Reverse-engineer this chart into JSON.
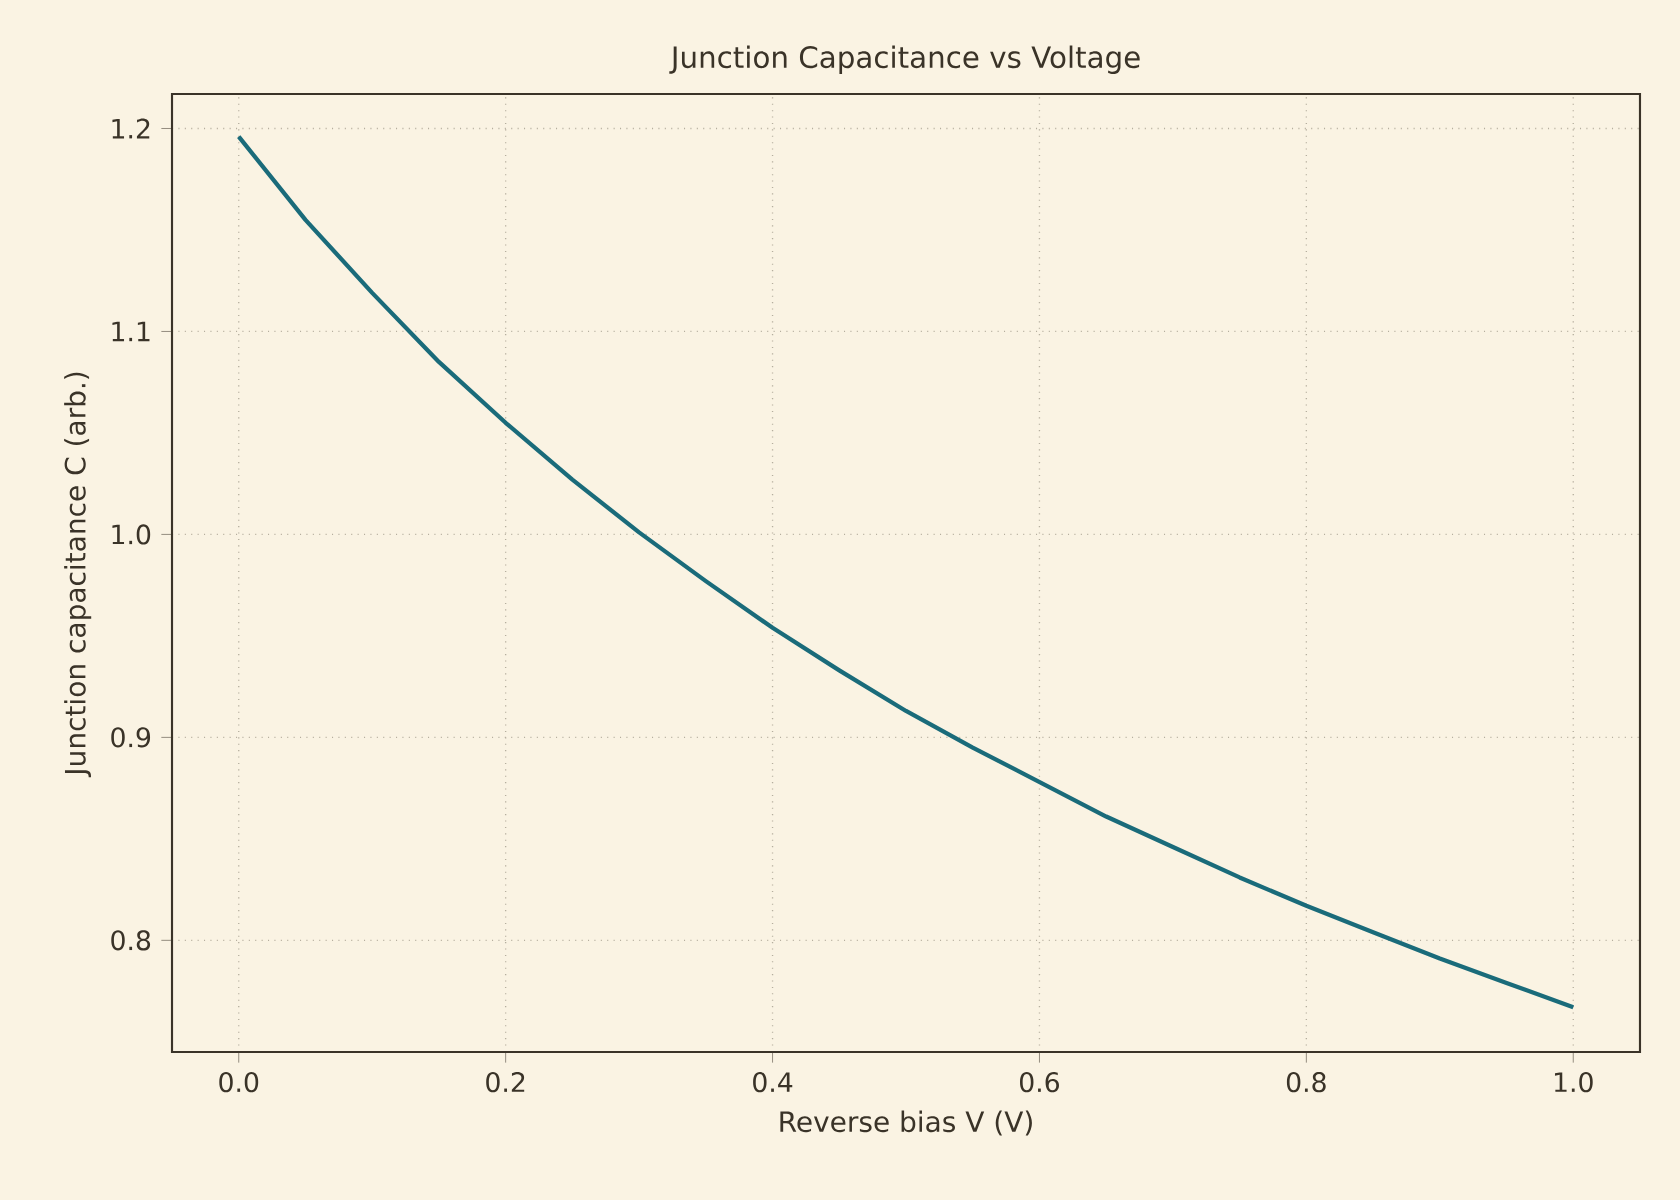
{
  "chart_data": {
    "type": "line",
    "title": "Junction Capacitance vs Voltage",
    "xlabel": "Reverse bias V (V)",
    "ylabel": "Junction capacitance C (arb.)",
    "x": [
      0,
      0.05,
      0.1,
      0.15,
      0.2,
      0.25,
      0.3,
      0.35,
      0.4,
      0.45,
      0.5,
      0.55,
      0.6,
      0.65,
      0.7,
      0.75,
      0.8,
      0.85,
      0.9,
      0.95,
      1.0
    ],
    "series": [
      {
        "color": "#1a6b7a",
        "values": [
          1.196,
          1.155,
          1.119,
          1.085,
          1.055,
          1.027,
          1.001,
          0.977,
          0.954,
          0.933,
          0.913,
          0.895,
          0.878,
          0.861,
          0.846,
          0.831,
          0.817,
          0.804,
          0.791,
          0.779,
          0.767
        ]
      }
    ],
    "xlim": [
      -0.05,
      1.05
    ],
    "ylim": [
      0.745,
      1.217
    ],
    "xticks": [
      {
        "value": 0,
        "label": "0.0"
      },
      0.2,
      0.4,
      0.6,
      0.8,
      {
        "value": 1,
        "label": "1.0"
      }
    ],
    "yticks": [
      0.8,
      0.9,
      {
        "value": 1,
        "label": "1.0"
      },
      1.1,
      1.2
    ],
    "grid": true,
    "line_style": "solid"
  }
}
